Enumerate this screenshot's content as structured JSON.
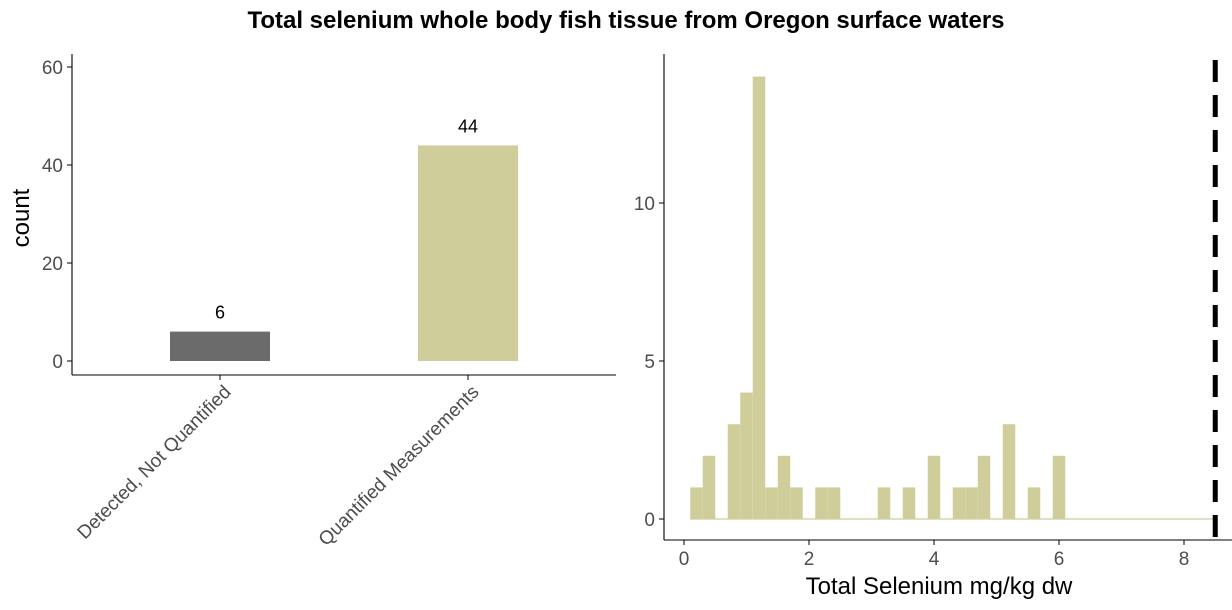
{
  "title": "Total selenium whole body fish tissue from Oregon surface waters",
  "colors": {
    "detected_bar": "#6b6b6b",
    "quantified_bar": "#cfcd9a",
    "axis": "#000000",
    "tick_label": "#4d4d4d",
    "reference_line": "#000000"
  },
  "chart_data": [
    {
      "type": "bar",
      "title": "",
      "xlabel": "",
      "ylabel": "count",
      "ylim": [
        0,
        62
      ],
      "yticks": [
        0,
        20,
        40,
        60
      ],
      "categories": [
        "Detected, Not Quantified",
        "Quantified Measurements"
      ],
      "values": [
        6,
        44
      ],
      "data_labels": [
        "6",
        "44"
      ],
      "bar_colors": [
        "#6b6b6b",
        "#cfcd9a"
      ],
      "tick_label_rotation": "45 degrees",
      "grid": false
    },
    {
      "type": "bar",
      "subtype": "histogram",
      "title": "",
      "xlabel": "Total Selenium mg/kg dw",
      "ylabel": "",
      "xlim": [
        -0.3,
        8.6
      ],
      "ylim": [
        0,
        14.8
      ],
      "xticks": [
        0,
        2,
        4,
        6,
        8
      ],
      "yticks": [
        0,
        5,
        10
      ],
      "bin_width": 0.2,
      "bins": [
        {
          "x0": 0.1,
          "x1": 0.3,
          "count": 1
        },
        {
          "x0": 0.3,
          "x1": 0.5,
          "count": 2
        },
        {
          "x0": 0.7,
          "x1": 0.9,
          "count": 3
        },
        {
          "x0": 0.9,
          "x1": 1.1,
          "count": 4
        },
        {
          "x0": 1.1,
          "x1": 1.3,
          "count": 14
        },
        {
          "x0": 1.3,
          "x1": 1.5,
          "count": 1
        },
        {
          "x0": 1.5,
          "x1": 1.7,
          "count": 2
        },
        {
          "x0": 1.7,
          "x1": 1.9,
          "count": 1
        },
        {
          "x0": 2.1,
          "x1": 2.3,
          "count": 1
        },
        {
          "x0": 2.3,
          "x1": 2.5,
          "count": 1
        },
        {
          "x0": 3.1,
          "x1": 3.3,
          "count": 1
        },
        {
          "x0": 3.5,
          "x1": 3.7,
          "count": 1
        },
        {
          "x0": 3.9,
          "x1": 4.1,
          "count": 2
        },
        {
          "x0": 4.3,
          "x1": 4.5,
          "count": 1
        },
        {
          "x0": 4.5,
          "x1": 4.7,
          "count": 1
        },
        {
          "x0": 4.7,
          "x1": 4.9,
          "count": 2
        },
        {
          "x0": 5.1,
          "x1": 5.3,
          "count": 3
        },
        {
          "x0": 5.5,
          "x1": 5.7,
          "count": 1
        },
        {
          "x0": 5.9,
          "x1": 6.1,
          "count": 2
        }
      ],
      "baseline_range": [
        0.1,
        8.5
      ],
      "reference_line": {
        "x": 8.5,
        "style": "dashed"
      },
      "bar_color": "#cfcd9a",
      "grid": false
    }
  ]
}
